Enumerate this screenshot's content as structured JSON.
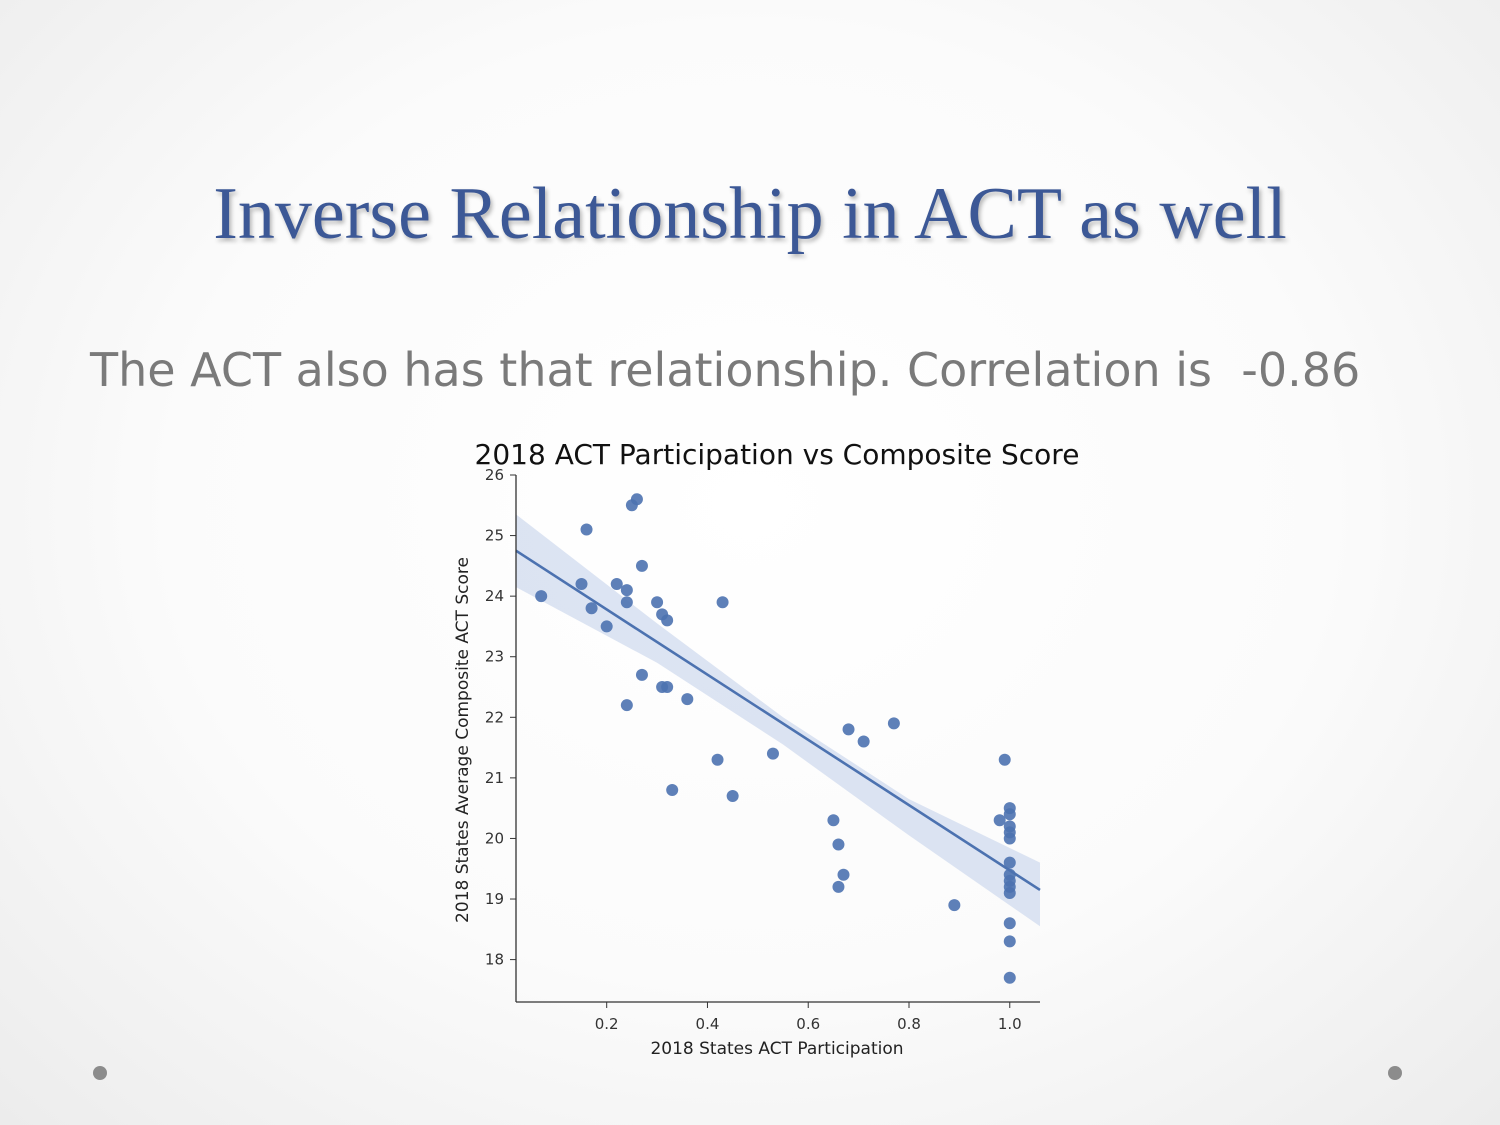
{
  "slide": {
    "title": "Inverse Relationship in ACT as well",
    "body": "The ACT also has that relationship. Correlation is  -0.86"
  },
  "colors": {
    "title": "#3c5896",
    "point": "#4c72b0",
    "band": "#c9d6ec"
  },
  "chart_data": {
    "type": "scatter",
    "title": "2018 ACT Participation vs Composite Score",
    "xlabel": "2018 States ACT Participation",
    "ylabel": "2018 States Average Composite ACT Score",
    "xlim": [
      0.02,
      1.06
    ],
    "ylim": [
      17.3,
      26
    ],
    "xticks": [
      0.2,
      0.4,
      0.6,
      0.8,
      1.0
    ],
    "xtick_labels": [
      "0.2",
      "0.4",
      "0.6",
      "0.8",
      "1.0"
    ],
    "yticks": [
      18,
      19,
      20,
      21,
      22,
      23,
      24,
      25,
      26
    ],
    "ytick_labels": [
      "18",
      "19",
      "20",
      "21",
      "22",
      "23",
      "24",
      "25",
      "26"
    ],
    "grid": false,
    "points": [
      {
        "x": 0.07,
        "y": 24.0
      },
      {
        "x": 0.15,
        "y": 24.2
      },
      {
        "x": 0.16,
        "y": 25.1
      },
      {
        "x": 0.17,
        "y": 23.8
      },
      {
        "x": 0.2,
        "y": 23.5
      },
      {
        "x": 0.22,
        "y": 24.2
      },
      {
        "x": 0.24,
        "y": 24.1
      },
      {
        "x": 0.24,
        "y": 23.9
      },
      {
        "x": 0.24,
        "y": 22.2
      },
      {
        "x": 0.25,
        "y": 25.5
      },
      {
        "x": 0.26,
        "y": 25.6
      },
      {
        "x": 0.27,
        "y": 24.5
      },
      {
        "x": 0.27,
        "y": 22.7
      },
      {
        "x": 0.3,
        "y": 23.9
      },
      {
        "x": 0.31,
        "y": 23.7
      },
      {
        "x": 0.32,
        "y": 23.6
      },
      {
        "x": 0.31,
        "y": 22.5
      },
      {
        "x": 0.32,
        "y": 22.5
      },
      {
        "x": 0.33,
        "y": 20.8
      },
      {
        "x": 0.36,
        "y": 22.3
      },
      {
        "x": 0.42,
        "y": 21.3
      },
      {
        "x": 0.43,
        "y": 23.9
      },
      {
        "x": 0.45,
        "y": 20.7
      },
      {
        "x": 0.53,
        "y": 21.4
      },
      {
        "x": 0.65,
        "y": 20.3
      },
      {
        "x": 0.66,
        "y": 19.9
      },
      {
        "x": 0.66,
        "y": 19.2
      },
      {
        "x": 0.67,
        "y": 19.4
      },
      {
        "x": 0.68,
        "y": 21.8
      },
      {
        "x": 0.71,
        "y": 21.6
      },
      {
        "x": 0.77,
        "y": 21.9
      },
      {
        "x": 0.89,
        "y": 18.9
      },
      {
        "x": 0.98,
        "y": 20.3
      },
      {
        "x": 0.99,
        "y": 21.3
      },
      {
        "x": 1.0,
        "y": 20.5
      },
      {
        "x": 1.0,
        "y": 20.4
      },
      {
        "x": 1.0,
        "y": 20.2
      },
      {
        "x": 1.0,
        "y": 20.1
      },
      {
        "x": 1.0,
        "y": 20.0
      },
      {
        "x": 1.0,
        "y": 19.6
      },
      {
        "x": 1.0,
        "y": 19.4
      },
      {
        "x": 1.0,
        "y": 19.3
      },
      {
        "x": 1.0,
        "y": 19.2
      },
      {
        "x": 1.0,
        "y": 19.1
      },
      {
        "x": 1.0,
        "y": 18.6
      },
      {
        "x": 1.0,
        "y": 18.3
      },
      {
        "x": 1.0,
        "y": 17.7
      }
    ],
    "regression": {
      "x": [
        0.02,
        1.06
      ],
      "y": [
        24.75,
        19.15
      ]
    },
    "confidence_band": {
      "x": [
        0.02,
        0.3,
        0.55,
        0.8,
        1.06
      ],
      "upper": [
        25.35,
        23.55,
        22.0,
        20.65,
        19.6
      ],
      "lower": [
        24.15,
        22.9,
        21.55,
        20.05,
        18.55
      ]
    }
  }
}
